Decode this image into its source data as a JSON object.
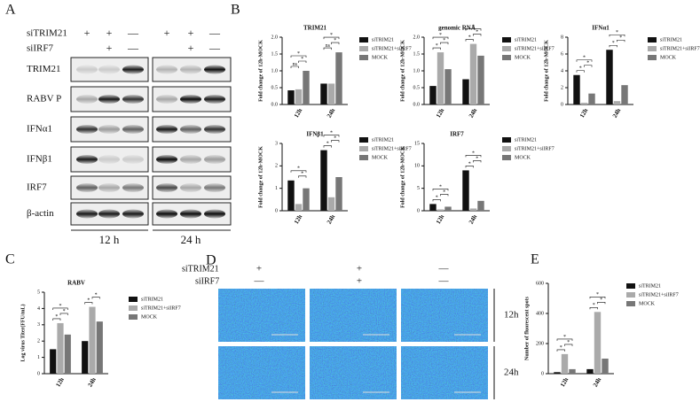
{
  "blot": {
    "panel_label": "A",
    "conditions": [
      {
        "name": "siTRIM21",
        "marks": [
          "+",
          "+",
          "—",
          "+",
          "+",
          "—"
        ]
      },
      {
        "name": "siIRF7",
        "marks": [
          null,
          "+",
          "—",
          null,
          "+",
          "—"
        ]
      }
    ],
    "rows": [
      "TRIM21",
      "RABV P",
      "IFNα1",
      "IFNβ1",
      "IRF7",
      "β-actin"
    ],
    "timepoints": [
      "12 h",
      "24 h"
    ]
  },
  "micrographs": {
    "panel_label": "D",
    "conditions": [
      {
        "name": "siTRIM21",
        "marks": [
          "+",
          "+",
          "—"
        ]
      },
      {
        "name": "siIRF7",
        "marks": [
          "—",
          "+",
          "—"
        ]
      }
    ],
    "timepoints": [
      "12h",
      "24h"
    ]
  },
  "chart_data": [
    {
      "type": "bar",
      "panel_label": "B",
      "title": "TRIM21",
      "y_label": "Fold change of 12h-MOCK",
      "categories": [
        "12h",
        "24h"
      ],
      "ylim": [
        0,
        2
      ],
      "yticks": [
        {
          "value": 0,
          "label": "0.0"
        },
        {
          "value": 0.5,
          "label": "0.5"
        },
        {
          "value": 1,
          "label": "1.0"
        },
        {
          "value": 1.5,
          "label": "1.5"
        },
        {
          "value": 2,
          "label": "2.0"
        }
      ],
      "series": [
        {
          "name": "siTRIM21",
          "color": "#111111",
          "values": [
            0.42,
            0.62
          ]
        },
        {
          "name": "siTRIM21+siIRF7",
          "color": "#aaaaaa",
          "values": [
            0.45,
            0.62
          ]
        },
        {
          "name": "MOCK",
          "color": "#777777",
          "values": [
            1.0,
            1.55
          ]
        }
      ],
      "significance": [
        {
          "label": "ns",
          "category": 0,
          "pair": [
            0,
            1
          ]
        },
        {
          "label": "*",
          "category": 0,
          "pair": [
            1,
            2
          ]
        },
        {
          "label": "*",
          "category": 0,
          "pair": [
            0,
            2
          ]
        },
        {
          "label": "ns",
          "category": 1,
          "pair": [
            0,
            1
          ]
        },
        {
          "label": "*",
          "category": 1,
          "pair": [
            1,
            2
          ]
        },
        {
          "label": "*",
          "category": 1,
          "pair": [
            0,
            2
          ]
        }
      ]
    },
    {
      "type": "bar",
      "title": "genomic RNA",
      "y_label": "Fold change of 12h-MOCK",
      "categories": [
        "12h",
        "24h"
      ],
      "ylim": [
        0,
        2
      ],
      "yticks": [
        {
          "value": 0,
          "label": "0.0"
        },
        {
          "value": 0.5,
          "label": "0.5"
        },
        {
          "value": 1,
          "label": "1.0"
        },
        {
          "value": 1.5,
          "label": "1.5"
        },
        {
          "value": 2,
          "label": "2.0"
        }
      ],
      "series": [
        {
          "name": "siTRIM21",
          "color": "#111111",
          "values": [
            0.55,
            0.75
          ]
        },
        {
          "name": "siTRIM21+siIRF7",
          "color": "#aaaaaa",
          "values": [
            1.55,
            1.8
          ]
        },
        {
          "name": "MOCK",
          "color": "#777777",
          "values": [
            1.05,
            1.45
          ]
        }
      ],
      "significance": [
        {
          "label": "*",
          "category": 0,
          "pair": [
            0,
            1
          ]
        },
        {
          "label": "*",
          "category": 0,
          "pair": [
            1,
            2
          ]
        },
        {
          "label": "*",
          "category": 0,
          "pair": [
            0,
            2
          ]
        },
        {
          "label": "*",
          "category": 1,
          "pair": [
            0,
            1
          ]
        },
        {
          "label": "*",
          "category": 1,
          "pair": [
            1,
            2
          ]
        },
        {
          "label": "*",
          "category": 1,
          "pair": [
            0,
            2
          ]
        }
      ]
    },
    {
      "type": "bar",
      "title": "IFNα1",
      "y_label": "Fold change of 12h-MOCK",
      "categories": [
        "12h",
        "24h"
      ],
      "ylim": [
        0,
        8
      ],
      "yticks": [
        0,
        2,
        4,
        6,
        8
      ],
      "series": [
        {
          "name": "siTRIM21",
          "color": "#111111",
          "values": [
            3.5,
            6.5
          ]
        },
        {
          "name": "siTRIM21+siIRF7",
          "color": "#aaaaaa",
          "values": [
            0.2,
            0.4
          ]
        },
        {
          "name": "MOCK",
          "color": "#777777",
          "values": [
            1.3,
            2.3
          ]
        }
      ],
      "significance": [
        {
          "label": "*",
          "category": 0,
          "pair": [
            0,
            1
          ]
        },
        {
          "label": "*",
          "category": 0,
          "pair": [
            1,
            2
          ]
        },
        {
          "label": "*",
          "category": 0,
          "pair": [
            0,
            2
          ]
        },
        {
          "label": "*",
          "category": 1,
          "pair": [
            0,
            1
          ]
        },
        {
          "label": "*",
          "category": 1,
          "pair": [
            1,
            2
          ]
        },
        {
          "label": "*",
          "category": 1,
          "pair": [
            0,
            2
          ]
        }
      ]
    },
    {
      "type": "bar",
      "title": "IFNβ1",
      "y_label": "Fold change of 12h-MOCK",
      "categories": [
        "12h",
        "24h"
      ],
      "ylim": [
        0,
        3
      ],
      "yticks": [
        0,
        1,
        2,
        3
      ],
      "series": [
        {
          "name": "siTRIM21",
          "color": "#111111",
          "values": [
            1.35,
            2.7
          ]
        },
        {
          "name": "siTRIM21+siIRF7",
          "color": "#aaaaaa",
          "values": [
            0.3,
            0.6
          ]
        },
        {
          "name": "MOCK",
          "color": "#777777",
          "values": [
            1.0,
            1.5
          ]
        }
      ],
      "significance": [
        {
          "label": "*",
          "category": 0,
          "pair": [
            1,
            2
          ]
        },
        {
          "label": "*",
          "category": 0,
          "pair": [
            0,
            2
          ]
        },
        {
          "label": "*",
          "category": 1,
          "pair": [
            0,
            1
          ]
        },
        {
          "label": "*",
          "category": 1,
          "pair": [
            1,
            2
          ]
        },
        {
          "label": "*",
          "category": 1,
          "pair": [
            0,
            2
          ]
        }
      ]
    },
    {
      "type": "bar",
      "title": "IRF7",
      "y_label": "Fold change of 12h-MOCK",
      "categories": [
        "12h",
        "24h"
      ],
      "ylim": [
        0,
        15
      ],
      "yticks": [
        0,
        5,
        10,
        15
      ],
      "series": [
        {
          "name": "siTRIM21",
          "color": "#111111",
          "values": [
            1.5,
            9.0
          ]
        },
        {
          "name": "siTRIM21+siIRF7",
          "color": "#aaaaaa",
          "values": [
            0.3,
            0.5
          ]
        },
        {
          "name": "MOCK",
          "color": "#777777",
          "values": [
            0.9,
            2.2
          ]
        }
      ],
      "significance": [
        {
          "label": "*",
          "category": 0,
          "pair": [
            0,
            1
          ]
        },
        {
          "label": "*",
          "category": 0,
          "pair": [
            1,
            2
          ]
        },
        {
          "label": "*",
          "category": 0,
          "pair": [
            0,
            2
          ]
        },
        {
          "label": "*",
          "category": 1,
          "pair": [
            0,
            1
          ]
        },
        {
          "label": "*",
          "category": 1,
          "pair": [
            1,
            2
          ]
        },
        {
          "label": "*",
          "category": 1,
          "pair": [
            0,
            2
          ]
        }
      ]
    },
    {
      "type": "bar",
      "panel_label": "C",
      "title": "RABV",
      "y_label": "Log virus Titer(FFU/mL)",
      "categories": [
        "12h",
        "24h"
      ],
      "ylim": [
        0,
        5
      ],
      "yticks": [
        0,
        1,
        2,
        3,
        4,
        5
      ],
      "series": [
        {
          "name": "siTRIM21",
          "color": "#111111",
          "values": [
            1.5,
            2.0
          ]
        },
        {
          "name": "siTRIM21+siIRF7",
          "color": "#aaaaaa",
          "values": [
            3.1,
            4.1
          ]
        },
        {
          "name": "MOCK",
          "color": "#777777",
          "values": [
            2.4,
            3.2
          ]
        }
      ],
      "significance": [
        {
          "label": "*",
          "category": 0,
          "pair": [
            0,
            1
          ]
        },
        {
          "label": "*",
          "category": 0,
          "pair": [
            1,
            2
          ]
        },
        {
          "label": "*",
          "category": 0,
          "pair": [
            0,
            2
          ]
        },
        {
          "label": "*",
          "category": 1,
          "pair": [
            0,
            1
          ]
        },
        {
          "label": "*",
          "category": 1,
          "pair": [
            1,
            2
          ]
        }
      ]
    },
    {
      "type": "bar",
      "panel_label": "E",
      "y_label": "Number of fluorescent spots",
      "categories": [
        "12h",
        "24h"
      ],
      "ylim": [
        0,
        600
      ],
      "yticks": [
        0,
        200,
        400,
        600
      ],
      "series": [
        {
          "name": "siTRIM21",
          "color": "#111111",
          "values": [
            10,
            30
          ]
        },
        {
          "name": "siTRIM21+siIRF7",
          "color": "#aaaaaa",
          "values": [
            130,
            410
          ]
        },
        {
          "name": "MOCK",
          "color": "#777777",
          "values": [
            30,
            100
          ]
        }
      ],
      "significance": [
        {
          "label": "*",
          "category": 0,
          "pair": [
            0,
            1
          ]
        },
        {
          "label": "*",
          "category": 0,
          "pair": [
            1,
            2
          ]
        },
        {
          "label": "*",
          "category": 0,
          "pair": [
            0,
            2
          ]
        },
        {
          "label": "*",
          "category": 1,
          "pair": [
            0,
            1
          ]
        },
        {
          "label": "*",
          "category": 1,
          "pair": [
            1,
            2
          ]
        },
        {
          "label": "*",
          "category": 1,
          "pair": [
            0,
            2
          ]
        }
      ]
    }
  ]
}
